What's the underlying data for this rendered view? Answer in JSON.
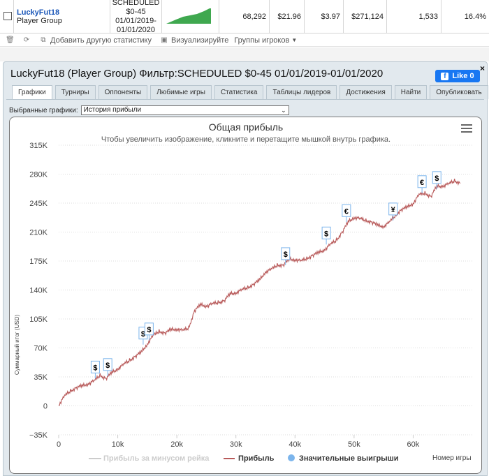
{
  "summary_row": {
    "player_name": "LuckyFut18",
    "player_group": "Player Group",
    "filter_lines": [
      "SCHEDULED",
      "$0-45",
      "01/01/2019-",
      "01/01/2020"
    ],
    "games": "68,292",
    "avg_buyin": "$21.96",
    "avg_profit": "$3.97",
    "total_profit": "$271,124",
    "col_a": "1,533",
    "roi": "16.4%"
  },
  "toolbar": {
    "add_stats": "Добавить другую статистику",
    "visualize": "Визуализируйте",
    "player_groups": "Группы игроков"
  },
  "panel": {
    "title": "LuckyFut18 (Player Group) Фильтр:SCHEDULED $0-45 01/01/2019-01/01/2020",
    "like_label": "Like 0",
    "close": "×",
    "tabs": [
      "Графики",
      "Турниры",
      "Оппоненты",
      "Любимые игры",
      "Статистика",
      "Таблицы лидеров",
      "Достижения",
      "Найти",
      "Опубликовать"
    ],
    "select_label": "Выбранные графики:",
    "select_value": "История прибыли"
  },
  "chart_data": {
    "type": "line",
    "title": "Общая прибыль",
    "subtitle": "Чтобы увеличить изображение, кликните и перетащите мышкой внутрь графика.",
    "xlabel": "Номер игры",
    "ylabel": "Суммарный итог (USD)",
    "xlim": [
      0,
      70000
    ],
    "ylim": [
      -35000,
      315000
    ],
    "x_ticks": [
      "0",
      "10k",
      "20k",
      "30k",
      "40k",
      "50k",
      "60k"
    ],
    "y_ticks": [
      "315K",
      "280K",
      "245K",
      "210K",
      "175K",
      "140K",
      "105K",
      "70K",
      "35K",
      "0",
      "−35K"
    ],
    "grid": true,
    "legend": [
      "Прибыль за минусом рейка",
      "Прибыль",
      "Значительные выигрыши"
    ],
    "legend_placement": "bottom",
    "series": [
      {
        "name": "Прибыль",
        "color": "#b85a5a",
        "x": [
          0,
          1000,
          2000,
          3000,
          4000,
          5000,
          6000,
          7000,
          8000,
          9000,
          10000,
          11000,
          12000,
          13000,
          14000,
          15000,
          16000,
          17000,
          18000,
          19000,
          20000,
          21000,
          22000,
          23000,
          24000,
          25000,
          26000,
          27000,
          28000,
          29000,
          30000,
          31000,
          32000,
          33000,
          34000,
          35000,
          36000,
          37000,
          38000,
          39000,
          40000,
          41000,
          42000,
          43000,
          44000,
          45000,
          46000,
          47000,
          48000,
          49000,
          50000,
          51000,
          52000,
          53000,
          54000,
          55000,
          56000,
          57000,
          58000,
          59000,
          60000,
          61000,
          62000,
          63000,
          64000,
          65000,
          66000,
          67000,
          68000
        ],
        "values": [
          1000,
          12000,
          18000,
          22000,
          24000,
          27000,
          30000,
          37000,
          33000,
          40000,
          45000,
          50000,
          55000,
          60000,
          65000,
          75000,
          85000,
          90000,
          88000,
          92000,
          93000,
          91000,
          94000,
          115000,
          122000,
          121000,
          123000,
          125000,
          127000,
          135000,
          137000,
          140000,
          143000,
          147000,
          152000,
          162000,
          165000,
          170000,
          170000,
          177000,
          177000,
          175000,
          178000,
          182000,
          185000,
          189000,
          195000,
          200000,
          210000,
          222000,
          228000,
          226000,
          224000,
          222000,
          218000,
          217000,
          222000,
          230000,
          237000,
          240000,
          245000,
          255000,
          257000,
          253000,
          265000,
          266000,
          268000,
          272000,
          269000
        ]
      }
    ],
    "big_wins": [
      {
        "x": 6200,
        "y": 33000,
        "symbol": "$"
      },
      {
        "x": 8300,
        "y": 36000,
        "symbol": "$"
      },
      {
        "x": 14300,
        "y": 74000,
        "symbol": "$"
      },
      {
        "x": 15300,
        "y": 79000,
        "symbol": "$"
      },
      {
        "x": 38400,
        "y": 170000,
        "symbol": "$"
      },
      {
        "x": 45300,
        "y": 195000,
        "symbol": "$"
      },
      {
        "x": 48700,
        "y": 222000,
        "symbol": "€"
      },
      {
        "x": 56600,
        "y": 224000,
        "symbol": "¥"
      },
      {
        "x": 61500,
        "y": 257000,
        "symbol": "€"
      },
      {
        "x": 64000,
        "y": 262000,
        "symbol": "$"
      }
    ]
  }
}
